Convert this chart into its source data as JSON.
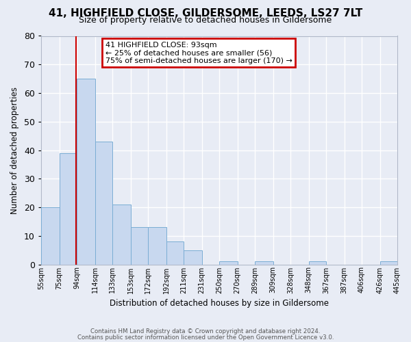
{
  "title": "41, HIGHFIELD CLOSE, GILDERSOME, LEEDS, LS27 7LT",
  "subtitle": "Size of property relative to detached houses in Gildersome",
  "xlabel": "Distribution of detached houses by size in Gildersome",
  "ylabel": "Number of detached properties",
  "bar_color": "#c8d8ef",
  "bar_edge_color": "#7aadd4",
  "background_color": "#e8ecf5",
  "grid_color": "#ffffff",
  "bin_left_edges": [
    55,
    75,
    94,
    114,
    133,
    153,
    172,
    192,
    211,
    231,
    250,
    270,
    289,
    309,
    328,
    348,
    367,
    387,
    406,
    426
  ],
  "bin_widths": [
    20,
    19,
    20,
    19,
    20,
    19,
    20,
    19,
    20,
    19,
    20,
    19,
    20,
    19,
    20,
    19,
    20,
    19,
    20,
    19
  ],
  "bar_heights": [
    20,
    39,
    65,
    43,
    21,
    13,
    13,
    8,
    5,
    0,
    1,
    0,
    1,
    0,
    0,
    1,
    0,
    0,
    0,
    1
  ],
  "tick_labels": [
    "55sqm",
    "75sqm",
    "94sqm",
    "114sqm",
    "133sqm",
    "153sqm",
    "172sqm",
    "192sqm",
    "211sqm",
    "231sqm",
    "250sqm",
    "270sqm",
    "289sqm",
    "309sqm",
    "328sqm",
    "348sqm",
    "367sqm",
    "387sqm",
    "406sqm",
    "426sqm",
    "445sqm"
  ],
  "ylim": [
    0,
    80
  ],
  "yticks": [
    0,
    10,
    20,
    30,
    40,
    50,
    60,
    70,
    80
  ],
  "property_line_x": 93,
  "annotation_title": "41 HIGHFIELD CLOSE: 93sqm",
  "annotation_line1": "← 25% of detached houses are smaller (56)",
  "annotation_line2": "75% of semi-detached houses are larger (170) →",
  "annotation_box_facecolor": "#ffffff",
  "annotation_box_edgecolor": "#cc0000",
  "vline_color": "#cc0000",
  "footer1": "Contains HM Land Registry data © Crown copyright and database right 2024.",
  "footer2": "Contains public sector information licensed under the Open Government Licence v3.0."
}
